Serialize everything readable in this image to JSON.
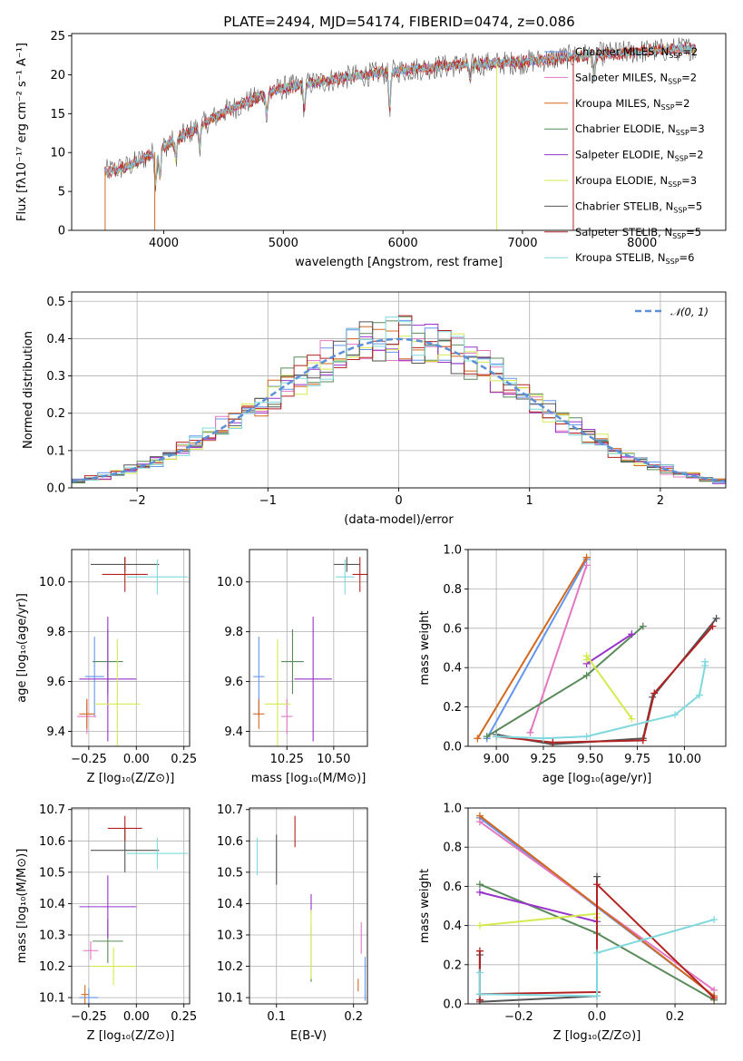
{
  "colors": {
    "chabrier_miles": "#6495ed",
    "salpeter_miles": "#e377c2",
    "kroupa_miles": "#d2691e",
    "chabrier_elodie": "#5a8a5a",
    "salpeter_elodie": "#9932cc",
    "kroupa_elodie": "#d4ea4f",
    "chabrier_stelib": "#555555",
    "salpeter_stelib": "#b22222",
    "kroupa_stelib": "#7fd8dd",
    "gaussian": "#5b8fd6"
  },
  "chart_data": [
    {
      "id": "spectrum",
      "type": "line",
      "title": "PLATE=2494, MJD=54174, FIBERID=0474, z=0.086",
      "xlabel": "wavelength [Angstrom, rest frame]",
      "ylabel": "Flux [fλ10⁻¹⁷ erg cm⁻² s⁻¹ A⁻¹]",
      "xlim": [
        3230,
        8700
      ],
      "ylim": [
        0,
        25.3
      ],
      "xticks": [
        4000,
        5000,
        6000,
        7000,
        8000
      ],
      "yticks": [
        0,
        5,
        10,
        15,
        20,
        25
      ],
      "grid": false,
      "legend_position": "upper-right",
      "continuum": [
        [
          3500,
          7.5
        ],
        [
          3700,
          8.2
        ],
        [
          3900,
          9.8
        ],
        [
          4000,
          10.8
        ],
        [
          4200,
          12.5
        ],
        [
          4500,
          15.2
        ],
        [
          4800,
          17.2
        ],
        [
          5000,
          18.3
        ],
        [
          5500,
          19.6
        ],
        [
          6000,
          20.6
        ],
        [
          6500,
          21.3
        ],
        [
          7000,
          21.6
        ],
        [
          7500,
          22.5
        ],
        [
          8000,
          23.0
        ],
        [
          8400,
          23.4
        ]
      ],
      "gaps": [
        [
          3500,
          3520
        ],
        [
          3915,
          3930
        ],
        [
          6780,
          6790
        ],
        [
          7420,
          7430
        ]
      ],
      "series": [
        {
          "name": "Chabrier MILES, N_SSP=2",
          "legend": "Chabrier MILES, N",
          "sub": "SSP",
          "suffix": "=2",
          "color": "#6495ed"
        },
        {
          "name": "Salpeter MILES, N_SSP=2",
          "legend": "Salpeter MILES, N",
          "sub": "SSP",
          "suffix": "=2",
          "color": "#e377c2"
        },
        {
          "name": "Kroupa MILES, N_SSP=2",
          "legend": "Kroupa MILES, N",
          "sub": "SSP",
          "suffix": "=2",
          "color": "#d2691e"
        },
        {
          "name": "Chabrier ELODIE, N_SSP=3",
          "legend": "Chabrier ELODIE, N",
          "sub": "SSP",
          "suffix": "=3",
          "color": "#5a8a5a"
        },
        {
          "name": "Salpeter ELODIE, N_SSP=2",
          "legend": "Salpeter ELODIE, N",
          "sub": "SSP",
          "suffix": "=2",
          "color": "#9932cc"
        },
        {
          "name": "Kroupa ELODIE, N_SSP=3",
          "legend": "Kroupa ELODIE, N",
          "sub": "SSP",
          "suffix": "=3",
          "color": "#d4ea4f"
        },
        {
          "name": "Chabrier STELIB, N_SSP=5",
          "legend": "Chabrier STELIB, N",
          "sub": "SSP",
          "suffix": "=5",
          "color": "#555555"
        },
        {
          "name": "Salpeter STELIB, N_SSP=5",
          "legend": "Salpeter STELIB, N",
          "sub": "SSP",
          "suffix": "=5",
          "color": "#b22222"
        },
        {
          "name": "Kroupa STELIB, N_SSP=6",
          "legend": "Kroupa STELIB, N",
          "sub": "SSP",
          "suffix": "=6",
          "color": "#7fd8dd"
        }
      ]
    },
    {
      "id": "residuals",
      "type": "histogram",
      "xlabel": "(data-model)/error",
      "ylabel": "Normed distribution",
      "xlim": [
        -2.5,
        2.5
      ],
      "ylim": [
        0,
        0.525
      ],
      "xticks": [
        -2,
        -1,
        0,
        1,
        2
      ],
      "yticks": [
        0.0,
        0.1,
        0.2,
        0.3,
        0.4,
        0.5
      ],
      "grid": true,
      "legend_position": "upper-right",
      "legend": "𝒩(0, 1)",
      "bin_width": 0.1
    },
    {
      "id": "age-vs-Z",
      "type": "errorbar",
      "xlabel": "Z [log₁₀(Z/Z⊙)]",
      "ylabel": "age  [log₁₀(age/yr)]",
      "xlim": [
        -0.34,
        0.28
      ],
      "ylim": [
        9.34,
        10.13
      ],
      "xticks": [
        -0.25,
        0.0,
        0.25
      ],
      "xtick_labels": [
        "−0.25",
        "0.00",
        "0.25"
      ],
      "yticks": [
        9.4,
        9.6,
        9.8,
        10.0
      ],
      "grid": true,
      "points": [
        {
          "color": "#6495ed",
          "x": -0.22,
          "xerr": 0.05,
          "y": 9.62,
          "yerr": 0.16
        },
        {
          "color": "#e377c2",
          "x": -0.26,
          "xerr": 0.05,
          "y": 9.46,
          "yerr": 0.07
        },
        {
          "color": "#d2691e",
          "x": -0.26,
          "xerr": 0.04,
          "y": 9.47,
          "yerr": 0.06
        },
        {
          "color": "#5a8a5a",
          "x": -0.15,
          "xerr": 0.08,
          "y": 9.68,
          "yerr": 0.13
        },
        {
          "color": "#9932cc",
          "x": -0.15,
          "xerr": 0.15,
          "y": 9.61,
          "yerr": 0.25
        },
        {
          "color": "#d4ea4f",
          "x": -0.1,
          "xerr": 0.12,
          "y": 9.51,
          "yerr": 0.26
        },
        {
          "color": "#555555",
          "x": -0.06,
          "xerr": 0.18,
          "y": 10.07,
          "yerr": 0.03
        },
        {
          "color": "#b22222",
          "x": -0.06,
          "xerr": 0.12,
          "y": 10.03,
          "yerr": 0.07
        },
        {
          "color": "#7fd8dd",
          "x": 0.11,
          "xerr": 0.16,
          "y": 10.02,
          "yerr": 0.07
        }
      ]
    },
    {
      "id": "age-vs-mass",
      "type": "errorbar",
      "xlabel": "mass [log₁₀(M/M⊙)]",
      "ylabel": "",
      "xlim": [
        10.05,
        10.68
      ],
      "ylim": [
        9.34,
        10.13
      ],
      "xticks": [
        10.25,
        10.5
      ],
      "xtick_labels": [
        "10.25",
        "10.50"
      ],
      "yticks": [
        9.4,
        9.6,
        9.8,
        10.0
      ],
      "grid": true,
      "points": [
        {
          "color": "#6495ed",
          "x": 10.1,
          "xerr": 0.03,
          "y": 9.62,
          "yerr": 0.16
        },
        {
          "color": "#e377c2",
          "x": 10.25,
          "xerr": 0.03,
          "y": 9.46,
          "yerr": 0.07
        },
        {
          "color": "#d2691e",
          "x": 10.1,
          "xerr": 0.03,
          "y": 9.47,
          "yerr": 0.06
        },
        {
          "color": "#5a8a5a",
          "x": 10.28,
          "xerr": 0.06,
          "y": 9.68,
          "yerr": 0.13
        },
        {
          "color": "#9932cc",
          "x": 10.39,
          "xerr": 0.1,
          "y": 9.61,
          "yerr": 0.25
        },
        {
          "color": "#d4ea4f",
          "x": 10.2,
          "xerr": 0.07,
          "y": 9.51,
          "yerr": 0.26
        },
        {
          "color": "#555555",
          "x": 10.57,
          "xerr": 0.07,
          "y": 10.07,
          "yerr": 0.03
        },
        {
          "color": "#b22222",
          "x": 10.64,
          "xerr": 0.04,
          "y": 10.03,
          "yerr": 0.07
        },
        {
          "color": "#7fd8dd",
          "x": 10.56,
          "xerr": 0.05,
          "y": 10.02,
          "yerr": 0.07
        }
      ]
    },
    {
      "id": "mass-weight-vs-age",
      "type": "line",
      "xlabel": "age  [log₁₀(age/yr)]",
      "ylabel": "mass weight",
      "xlim": [
        8.85,
        10.22
      ],
      "ylim": [
        0.0,
        1.0
      ],
      "xticks": [
        9.0,
        9.25,
        9.5,
        9.75,
        10.0
      ],
      "xtick_labels": [
        "9.00",
        "9.25",
        "9.50",
        "9.75",
        "10.00"
      ],
      "yticks": [
        0.0,
        0.2,
        0.4,
        0.6,
        0.8,
        1.0
      ],
      "grid": true,
      "series": [
        {
          "color": "#6495ed",
          "x": [
            8.95,
            9.48
          ],
          "y": [
            0.04,
            0.95
          ]
        },
        {
          "color": "#e377c2",
          "x": [
            9.18,
            9.48
          ],
          "y": [
            0.07,
            0.92
          ]
        },
        {
          "color": "#d2691e",
          "x": [
            8.9,
            9.48
          ],
          "y": [
            0.04,
            0.96
          ]
        },
        {
          "color": "#5a8a5a",
          "x": [
            8.95,
            9.48,
            9.78
          ],
          "y": [
            0.05,
            0.36,
            0.61
          ]
        },
        {
          "color": "#9932cc",
          "x": [
            9.48,
            9.72
          ],
          "y": [
            0.42,
            0.57
          ]
        },
        {
          "color": "#d4ea4f",
          "x": [
            9.48,
            9.48,
            9.72
          ],
          "y": [
            0.44,
            0.46,
            0.14
          ]
        },
        {
          "color": "#555555",
          "x": [
            9.0,
            9.3,
            9.78,
            9.83,
            10.17
          ],
          "y": [
            0.06,
            0.01,
            0.04,
            0.25,
            0.65
          ]
        },
        {
          "color": "#b22222",
          "x": [
            9.0,
            9.3,
            9.78,
            9.84,
            10.15
          ],
          "y": [
            0.05,
            0.02,
            0.03,
            0.27,
            0.61
          ]
        },
        {
          "color": "#7fd8dd",
          "x": [
            9.0,
            9.25,
            9.48,
            9.95,
            10.08,
            10.11,
            10.11
          ],
          "y": [
            0.05,
            0.04,
            0.05,
            0.16,
            0.26,
            0.41,
            0.43
          ]
        }
      ]
    },
    {
      "id": "mass-vs-Z",
      "type": "errorbar",
      "xlabel": "Z [log₁₀(Z/Z⊙)]",
      "ylabel": "mass [log₁₀(M/M⊙)]",
      "xlim": [
        -0.34,
        0.28
      ],
      "ylim": [
        10.08,
        10.705
      ],
      "xticks": [
        -0.25,
        0.0,
        0.25
      ],
      "xtick_labels": [
        "−0.25",
        "0.00",
        "0.25"
      ],
      "yticks": [
        10.1,
        10.2,
        10.3,
        10.4,
        10.5,
        10.6,
        10.7
      ],
      "grid": true,
      "points": [
        {
          "color": "#6495ed",
          "x": -0.25,
          "xerr": 0.05,
          "y": 10.1,
          "yerr": 0.03
        },
        {
          "color": "#e377c2",
          "x": -0.24,
          "xerr": 0.04,
          "y": 10.25,
          "yerr": 0.03
        },
        {
          "color": "#d2691e",
          "x": -0.27,
          "xerr": 0.02,
          "y": 10.11,
          "yerr": 0.03
        },
        {
          "color": "#5a8a5a",
          "x": -0.15,
          "xerr": 0.08,
          "y": 10.28,
          "yerr": 0.07
        },
        {
          "color": "#9932cc",
          "x": -0.15,
          "xerr": 0.15,
          "y": 10.39,
          "yerr": 0.1
        },
        {
          "color": "#d4ea4f",
          "x": -0.12,
          "xerr": 0.12,
          "y": 10.2,
          "yerr": 0.06
        },
        {
          "color": "#555555",
          "x": -0.06,
          "xerr": 0.18,
          "y": 10.57,
          "yerr": 0.07
        },
        {
          "color": "#b22222",
          "x": -0.06,
          "xerr": 0.09,
          "y": 10.64,
          "yerr": 0.04
        },
        {
          "color": "#7fd8dd",
          "x": 0.11,
          "xerr": 0.16,
          "y": 10.56,
          "yerr": 0.05
        }
      ]
    },
    {
      "id": "mass-vs-ebv",
      "type": "errorbar",
      "xlabel": "E(B-V)",
      "ylabel": "",
      "xlim": [
        0.065,
        0.218
      ],
      "ylim": [
        10.08,
        10.705
      ],
      "xticks": [
        0.1,
        0.2
      ],
      "xtick_labels": [
        "0.1",
        "0.2"
      ],
      "yticks": [
        10.1,
        10.2,
        10.3,
        10.4,
        10.5,
        10.6,
        10.7
      ],
      "grid": true,
      "points": [
        {
          "color": "#6495ed",
          "x": 0.215,
          "xerr": 0,
          "y": 10.16,
          "yerr": 0.07
        },
        {
          "color": "#e377c2",
          "x": 0.21,
          "xerr": 0,
          "y": 10.29,
          "yerr": 0.05
        },
        {
          "color": "#d2691e",
          "x": 0.206,
          "xerr": 0,
          "y": 10.14,
          "yerr": 0.02
        },
        {
          "color": "#5a8a5a",
          "x": 0.145,
          "xerr": 0,
          "y": 10.24,
          "yerr": 0.09
        },
        {
          "color": "#9932cc",
          "x": 0.145,
          "xerr": 0,
          "y": 10.4,
          "yerr": 0.03
        },
        {
          "color": "#d4ea4f",
          "x": 0.145,
          "xerr": 0,
          "y": 10.27,
          "yerr": 0.11
        },
        {
          "color": "#555555",
          "x": 0.1,
          "xerr": 0,
          "y": 10.54,
          "yerr": 0.08
        },
        {
          "color": "#b22222",
          "x": 0.124,
          "xerr": 0,
          "y": 10.63,
          "yerr": 0.05
        },
        {
          "color": "#7fd8dd",
          "x": 0.075,
          "xerr": 0,
          "y": 10.55,
          "yerr": 0.06
        }
      ]
    },
    {
      "id": "mass-weight-vs-Z",
      "type": "line",
      "xlabel": "Z [log₁₀(Z/Z⊙)]",
      "ylabel": "mass weight",
      "xlim": [
        -0.33,
        0.33
      ],
      "ylim": [
        0.0,
        1.0
      ],
      "xticks": [
        -0.2,
        0.0,
        0.2
      ],
      "xtick_labels": [
        "−0.2",
        "0.0",
        "0.2"
      ],
      "yticks": [
        0.0,
        0.2,
        0.4,
        0.6,
        0.8,
        1.0
      ],
      "grid": true,
      "series": [
        {
          "color": "#6495ed",
          "x": [
            -0.3,
            0.3
          ],
          "y": [
            0.95,
            0.04
          ]
        },
        {
          "color": "#e377c2",
          "x": [
            -0.3,
            0.3
          ],
          "y": [
            0.93,
            0.07
          ]
        },
        {
          "color": "#d2691e",
          "x": [
            -0.3,
            0.3
          ],
          "y": [
            0.96,
            0.04
          ]
        },
        {
          "color": "#5a8a5a",
          "x": [
            -0.3,
            0.0,
            0.3
          ],
          "y": [
            0.61,
            0.36,
            0.02
          ]
        },
        {
          "color": "#9932cc",
          "x": [
            -0.3,
            0.0
          ],
          "y": [
            0.57,
            0.42
          ]
        },
        {
          "color": "#d4ea4f",
          "x": [
            -0.3,
            0.0,
            0.0
          ],
          "y": [
            0.4,
            0.46,
            0.44
          ]
        },
        {
          "color": "#555555",
          "x": [
            -0.3,
            -0.3,
            0.0,
            0.0,
            0.0
          ],
          "y": [
            0.25,
            0.01,
            0.04,
            0.06,
            0.65
          ]
        },
        {
          "color": "#b22222",
          "x": [
            -0.3,
            -0.3,
            -0.3,
            0.0,
            0.0,
            0.3
          ],
          "y": [
            0.27,
            0.02,
            0.05,
            0.06,
            0.61,
            0.03
          ]
        },
        {
          "color": "#7fd8dd",
          "x": [
            -0.3,
            -0.3,
            0.0,
            0.0,
            0.3
          ],
          "y": [
            0.16,
            0.05,
            0.04,
            0.26,
            0.43
          ]
        }
      ]
    }
  ]
}
